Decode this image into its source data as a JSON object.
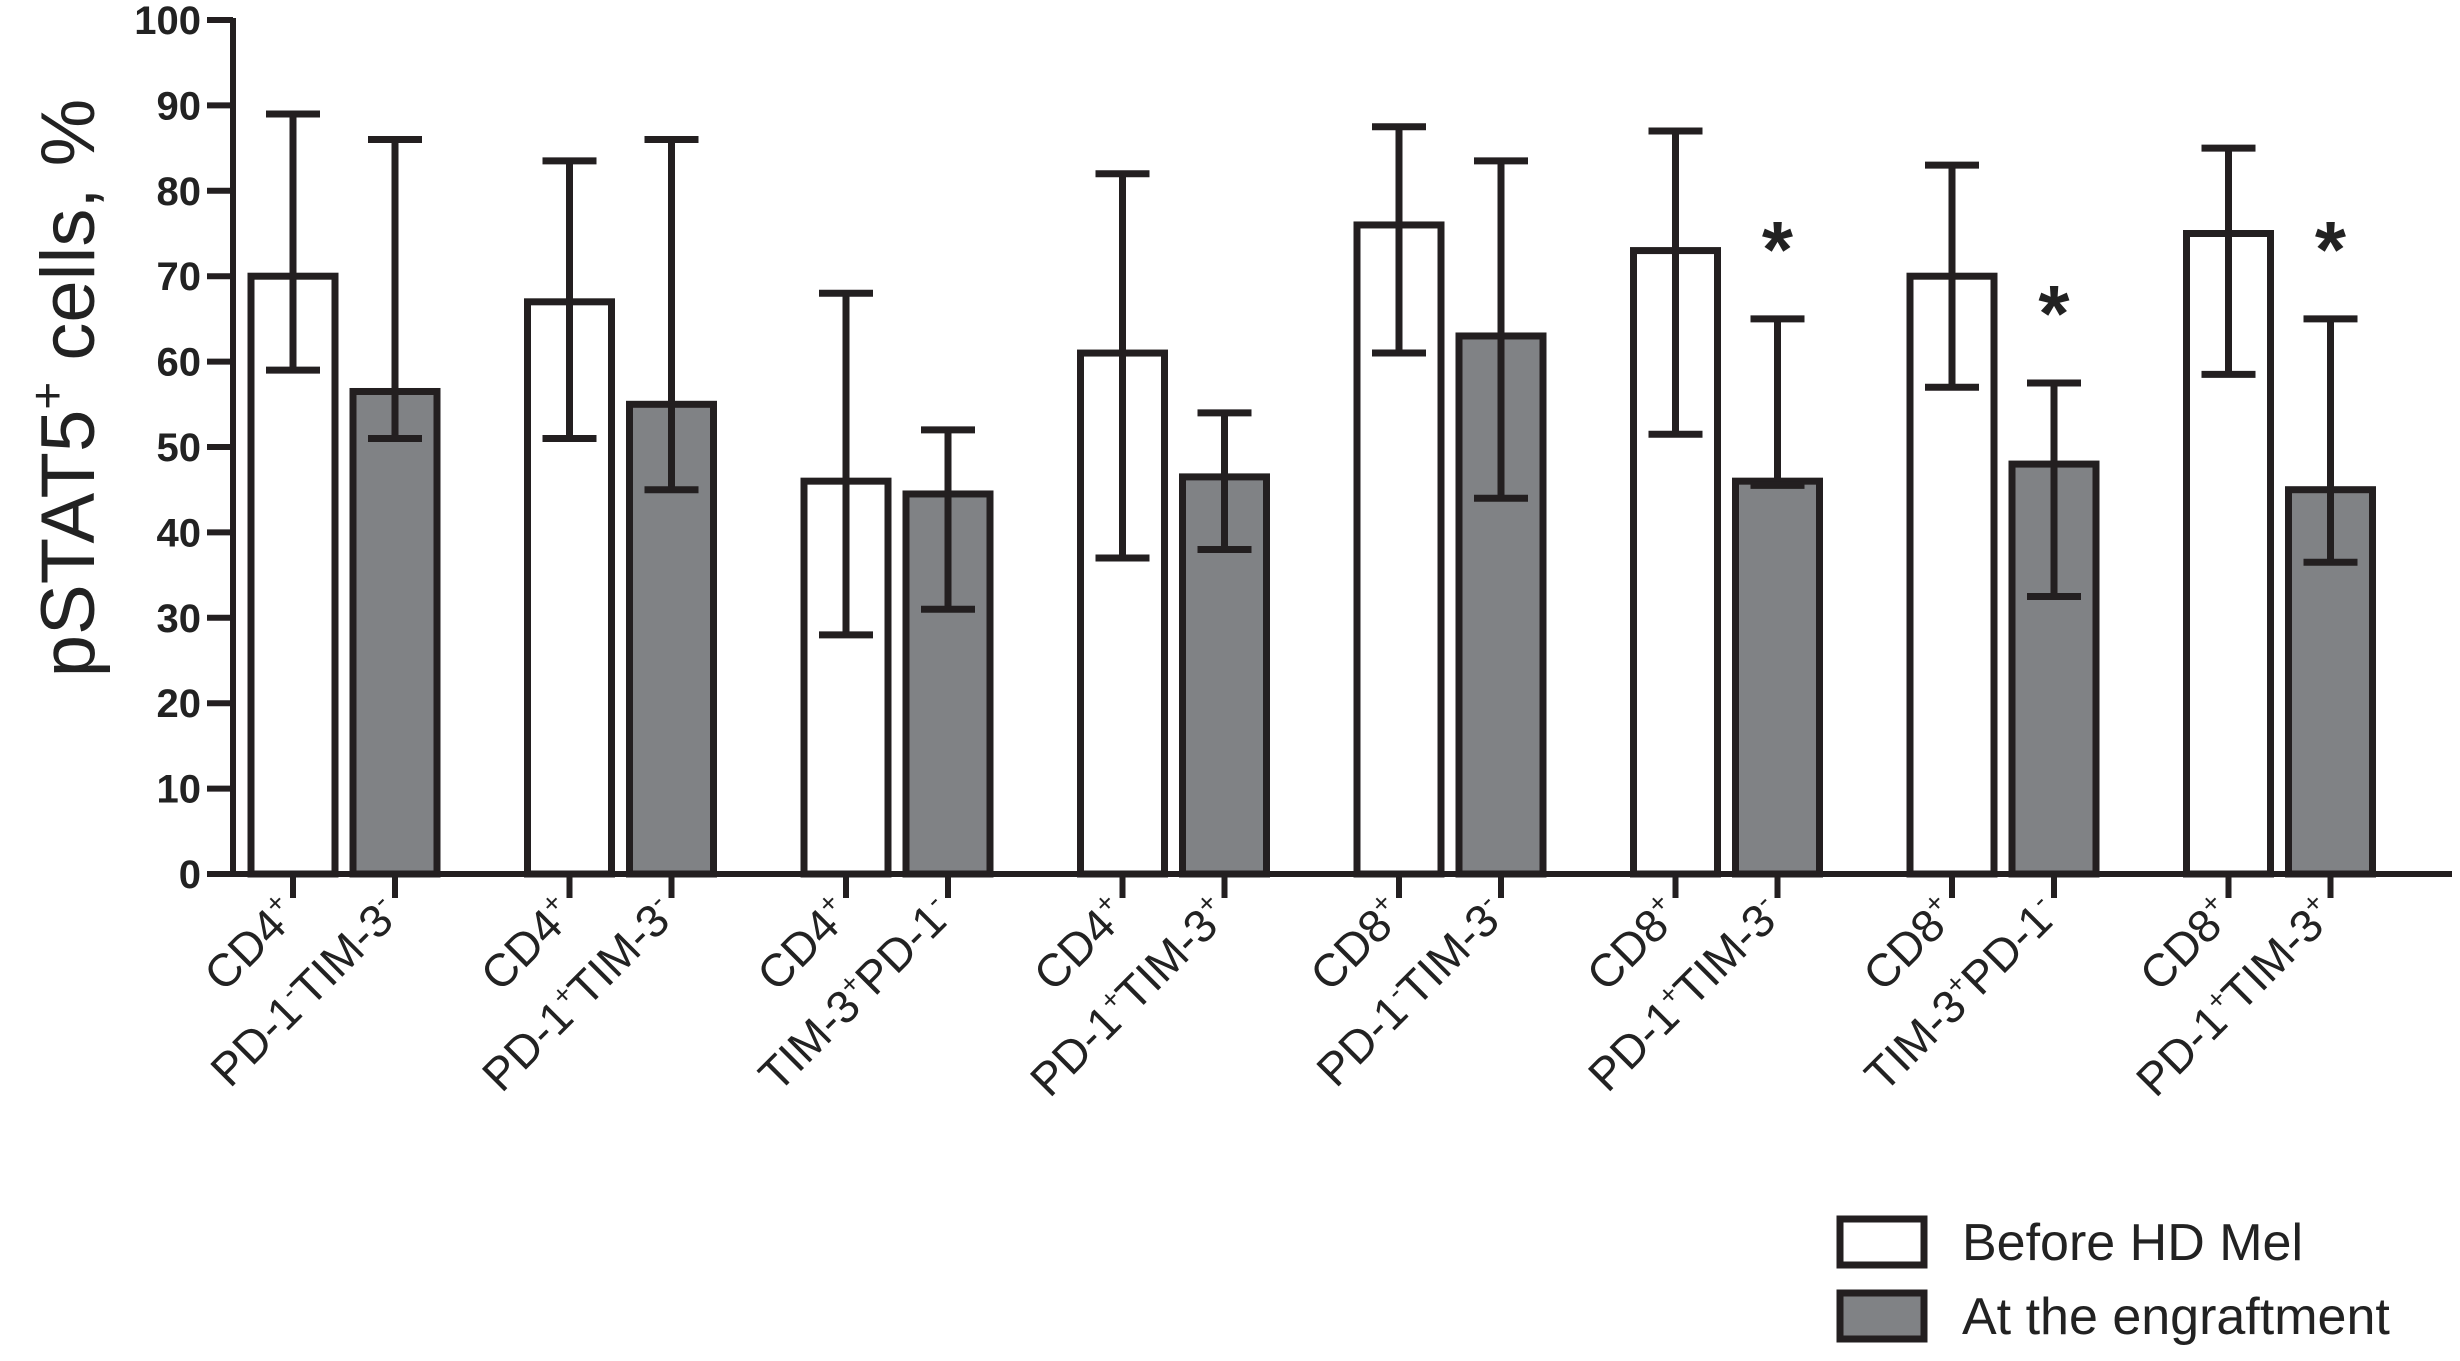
{
  "chart_data": {
    "type": "bar",
    "title": "",
    "xlabel": "",
    "ylabel": "pSTAT5",
    "ylabel_sup": "+",
    "ylabel_rest": " cells, %",
    "ylim": [
      0,
      100
    ],
    "yticks": [
      "0",
      "10",
      "20",
      "30",
      "40",
      "50",
      "60",
      "70",
      "80",
      "90",
      "100"
    ],
    "categories": [
      {
        "line1": "CD4",
        "line1_sup": "+",
        "line2": [
          [
            "PD-1",
            "-"
          ],
          [
            "TIM-3",
            "-"
          ]
        ]
      },
      {
        "line1": "CD4",
        "line1_sup": "+",
        "line2": [
          [
            "PD-1",
            "+"
          ],
          [
            "TIM-3",
            "-"
          ]
        ]
      },
      {
        "line1": "CD4",
        "line1_sup": "+",
        "line2": [
          [
            "TIM-3",
            "+"
          ],
          [
            "PD-1",
            "-"
          ]
        ]
      },
      {
        "line1": "CD4",
        "line1_sup": "+",
        "line2": [
          [
            "PD-1",
            "+"
          ],
          [
            "TIM-3",
            "+"
          ]
        ]
      },
      {
        "line1": "CD8",
        "line1_sup": "+",
        "line2": [
          [
            "PD-1",
            "-"
          ],
          [
            "TIM-3",
            "-"
          ]
        ]
      },
      {
        "line1": "CD8",
        "line1_sup": "+",
        "line2": [
          [
            "PD-1",
            "+"
          ],
          [
            "TIM-3",
            "-"
          ]
        ]
      },
      {
        "line1": "CD8",
        "line1_sup": "+",
        "line2": [
          [
            "TIM-3",
            "+"
          ],
          [
            "PD-1",
            "-"
          ]
        ]
      },
      {
        "line1": "CD8",
        "line1_sup": "+",
        "line2": [
          [
            "PD-1",
            "+"
          ],
          [
            "TIM-3",
            "+"
          ]
        ]
      }
    ],
    "series": [
      {
        "name": "Before HD Mel",
        "color": "#ffffff",
        "values": [
          70,
          67,
          46,
          61,
          76,
          73,
          70,
          75
        ],
        "err_low": [
          59,
          51,
          28,
          37,
          61,
          51.5,
          57,
          58.5
        ],
        "err_high": [
          89,
          83.5,
          68,
          82,
          87.5,
          87,
          83,
          85
        ]
      },
      {
        "name": "At the engraftment",
        "color": "#808285",
        "values": [
          56.5,
          55,
          44.5,
          46.5,
          63,
          46,
          48,
          45
        ],
        "err_low": [
          51,
          45,
          31,
          38,
          44,
          45.5,
          32.5,
          36.5
        ],
        "err_high": [
          86,
          86,
          52,
          54,
          83.5,
          65,
          57.5,
          65
        ]
      }
    ],
    "significance": [
      null,
      null,
      null,
      null,
      null,
      "*",
      "*",
      "*"
    ],
    "legend_position": "bottom-right",
    "edge_color": "#231f20"
  }
}
